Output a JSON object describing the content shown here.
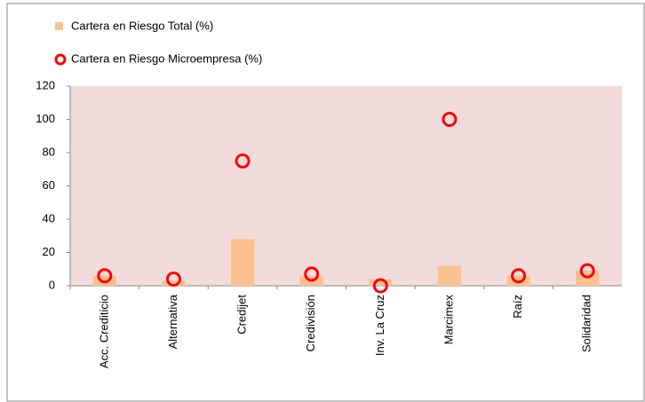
{
  "chart_data": {
    "type": "combo",
    "categories": [
      "Acc. Crediticio",
      "Alternativa",
      "Credijet",
      "Credivisión",
      "Inv. La Cruz",
      "Marcimex",
      "Raíz",
      "Solidaridad"
    ],
    "series": [
      {
        "name": "Cartera en Riesgo Total (%)",
        "type": "bar",
        "color": "#fac090",
        "values": [
          6,
          3,
          28,
          6,
          4,
          12,
          6,
          9
        ]
      },
      {
        "name": "Cartera en Riesgo Microempresa (%)",
        "type": "scatter",
        "color": "#ff0000",
        "values": [
          6,
          4,
          75,
          7,
          0,
          100,
          6,
          9
        ]
      }
    ],
    "ylim": [
      0,
      120
    ],
    "yticks": [
      0,
      20,
      40,
      60,
      80,
      100,
      120
    ],
    "plot_background": "#f2dcdb"
  }
}
